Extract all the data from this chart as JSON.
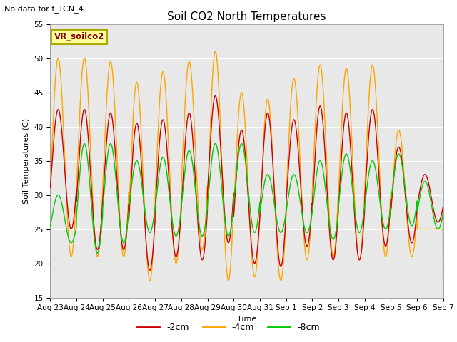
{
  "title": "Soil CO2 North Temperatures",
  "no_data_text": "No data for f_TCN_4",
  "ylabel": "Soil Temperatures (C)",
  "xlabel": "Time",
  "ylim": [
    15,
    55
  ],
  "background_color": "#e8e8e8",
  "legend_label": "VR_soilco2",
  "colors": {
    "2cm": "#cc0000",
    "4cm": "#ffa500",
    "8cm": "#00cc00"
  },
  "legend_entries": [
    "-2cm",
    "-4cm",
    "-8cm"
  ],
  "xtick_labels": [
    "Aug 23",
    "Aug 24",
    "Aug 25",
    "Aug 26",
    "Aug 27",
    "Aug 28",
    "Aug 29",
    "Aug 30",
    "Aug 31",
    "Sep 1",
    "Sep 2",
    "Sep 3",
    "Sep 4",
    "Sep 5",
    "Sep 6",
    "Sep 7"
  ],
  "ytick_values": [
    15,
    20,
    25,
    30,
    35,
    40,
    45,
    50,
    55
  ],
  "num_days": 15,
  "peak_phase": 0.3,
  "series_2cm": {
    "peaks": [
      42.5,
      42.5,
      42.0,
      40.5,
      41.0,
      42.0,
      44.5,
      39.5,
      42.0,
      41.0,
      43.0,
      42.0,
      42.5,
      37.0,
      33.0
    ],
    "troughs": [
      25.0,
      22.0,
      22.0,
      19.0,
      21.0,
      20.5,
      23.0,
      20.0,
      19.5,
      22.5,
      20.5,
      20.5,
      22.5,
      23.0,
      26.0
    ]
  },
  "series_4cm": {
    "peaks": [
      50.0,
      50.0,
      49.5,
      46.5,
      48.0,
      49.5,
      51.0,
      45.0,
      44.0,
      47.0,
      49.0,
      48.5,
      49.0,
      39.5,
      25.0
    ],
    "troughs": [
      21.0,
      21.0,
      21.0,
      17.5,
      20.0,
      22.0,
      17.5,
      18.0,
      17.5,
      20.5,
      21.0,
      20.5,
      21.0,
      21.0,
      25.0
    ]
  },
  "series_8cm": {
    "peaks": [
      30.0,
      37.5,
      37.5,
      35.0,
      35.5,
      36.5,
      37.5,
      37.5,
      33.0,
      33.0,
      35.0,
      36.0,
      35.0,
      36.0,
      32.0
    ],
    "troughs": [
      23.0,
      21.5,
      23.0,
      24.5,
      24.0,
      24.0,
      24.0,
      24.5,
      24.5,
      24.5,
      23.5,
      24.5,
      25.0,
      25.5,
      25.0
    ]
  }
}
